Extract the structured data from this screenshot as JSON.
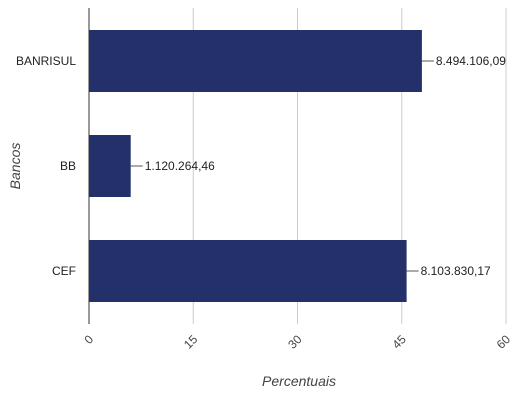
{
  "chart_data": {
    "type": "bar",
    "orientation": "horizontal",
    "categories": [
      "BANRISUL",
      "BB",
      "CEF"
    ],
    "values": [
      47.9,
      6.0,
      45.7
    ],
    "data_labels": [
      "8.494.106,09",
      "1.120.264,46",
      "8.103.830,17"
    ],
    "xlabel": "Percentuais",
    "ylabel": "Bancos",
    "xlim": [
      0,
      60
    ],
    "x_ticks": [
      "0",
      "15",
      "30",
      "45",
      "60"
    ],
    "grid": true,
    "legend": "none",
    "bar_color": "#23306a"
  }
}
